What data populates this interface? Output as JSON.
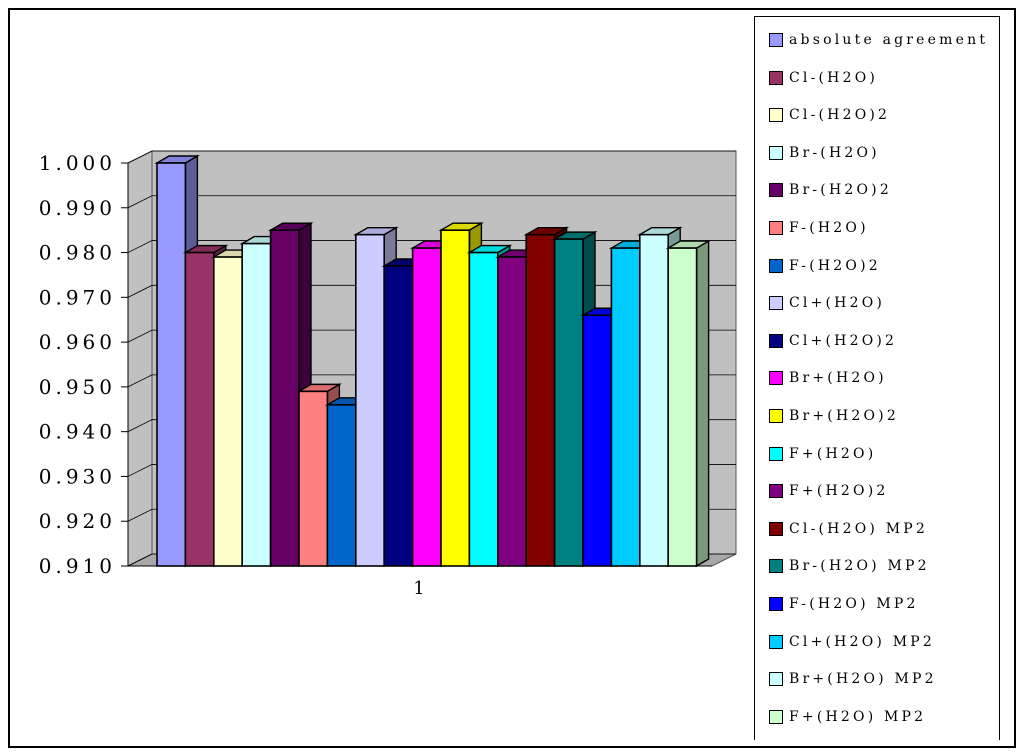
{
  "chart_data": {
    "type": "bar",
    "style": "3d-clustered-column",
    "categories": [
      "1"
    ],
    "ylim": [
      0.91,
      1.0
    ],
    "yticks": [
      "0.910",
      "0.920",
      "0.930",
      "0.940",
      "0.950",
      "0.960",
      "0.970",
      "0.980",
      "0.990",
      "1.000"
    ],
    "grid": true,
    "legend_position": "right",
    "series": [
      {
        "name": "absolute agreement",
        "values": [
          1.0
        ],
        "color": "#9999FF"
      },
      {
        "name": "Cl-(H2O)",
        "values": [
          0.98
        ],
        "color": "#993366"
      },
      {
        "name": "Cl-(H2O)2",
        "values": [
          0.979
        ],
        "color": "#FFFFCC"
      },
      {
        "name": "Br-(H2O)",
        "values": [
          0.982
        ],
        "color": "#CCFFFF"
      },
      {
        "name": "Br-(H2O)2",
        "values": [
          0.985
        ],
        "color": "#660066"
      },
      {
        "name": "F-(H2O)",
        "values": [
          0.949
        ],
        "color": "#FF8080"
      },
      {
        "name": "F-(H2O)2",
        "values": [
          0.946
        ],
        "color": "#0066CC"
      },
      {
        "name": "Cl+(H2O)",
        "values": [
          0.984
        ],
        "color": "#CCCCFF"
      },
      {
        "name": "Cl+(H2O)2",
        "values": [
          0.977
        ],
        "color": "#000080"
      },
      {
        "name": "Br+(H2O)",
        "values": [
          0.981
        ],
        "color": "#FF00FF"
      },
      {
        "name": "Br+(H2O)2",
        "values": [
          0.985
        ],
        "color": "#FFFF00"
      },
      {
        "name": "F+(H2O)",
        "values": [
          0.98
        ],
        "color": "#00FFFF"
      },
      {
        "name": "F+(H2O)2",
        "values": [
          0.979
        ],
        "color": "#800080"
      },
      {
        "name": "Cl-(H2O) MP2",
        "values": [
          0.984
        ],
        "color": "#800000"
      },
      {
        "name": "Br-(H2O) MP2",
        "values": [
          0.983
        ],
        "color": "#008080"
      },
      {
        "name": "F-(H2O) MP2",
        "values": [
          0.966
        ],
        "color": "#0000FF"
      },
      {
        "name": "Cl+(H2O) MP2",
        "values": [
          0.981
        ],
        "color": "#00CCFF"
      },
      {
        "name": "Br+(H2O) MP2",
        "values": [
          0.984
        ],
        "color": "#CCFFFF"
      },
      {
        "name": "F+(H2O) MP2",
        "values": [
          0.981
        ],
        "color": "#CCFFCC"
      }
    ]
  },
  "colors": {
    "plot_wall": "#C0C0C0",
    "floor": "#A8A8A8",
    "gridline": "#000000"
  }
}
